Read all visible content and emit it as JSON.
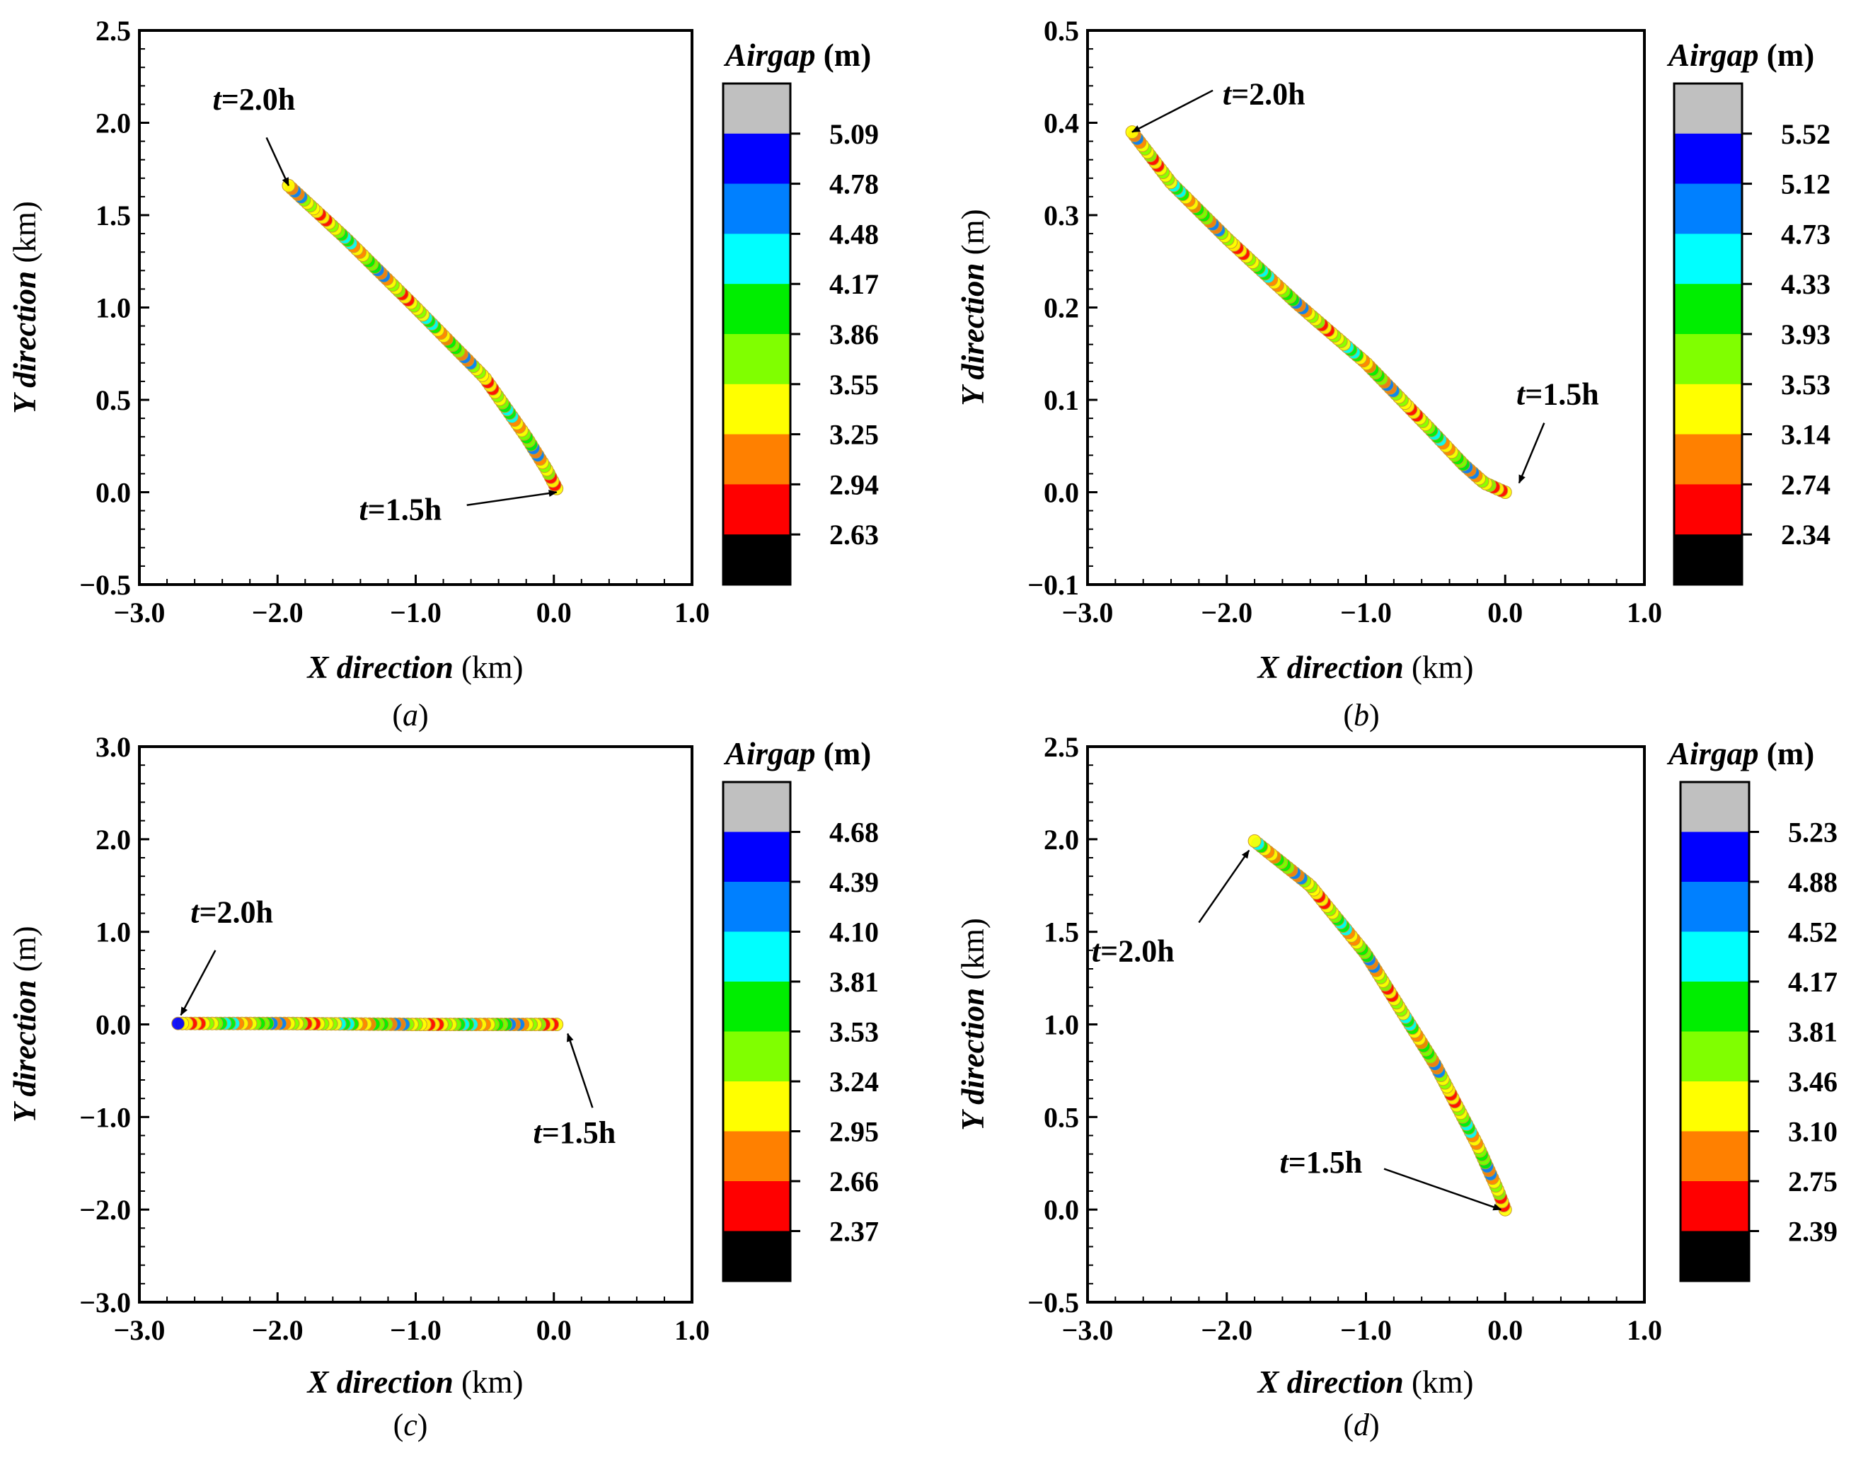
{
  "colors": {
    "levels": [
      "#000000",
      "#ff0000",
      "#ff8000",
      "#ffff00",
      "#80ff00",
      "#00ee00",
      "#00ffff",
      "#0080ff",
      "#0000ff",
      "#c0c0c0"
    ]
  },
  "chart_data": [
    {
      "type": "scatter",
      "panel": "a",
      "caption_letter": "a",
      "xlabel_var": "X direction",
      "xlabel_unit": " (km)",
      "ylabel_var": "Y direction",
      "ylabel_unit": " (km)",
      "xlim": [
        -3.0,
        1.0
      ],
      "ylim": [
        -0.5,
        2.5
      ],
      "xticks": [
        -3.0,
        -2.0,
        -1.0,
        0.0,
        1.0
      ],
      "xtick_labels": [
        "−3.0",
        "−2.0",
        "−1.0",
        "0.0",
        "1.0"
      ],
      "yticks": [
        -0.5,
        0.0,
        0.5,
        1.0,
        1.5,
        2.0,
        2.5
      ],
      "ytick_labels": [
        "−0.5",
        "0.0",
        "0.5",
        "1.0",
        "1.5",
        "2.0",
        "2.5"
      ],
      "colorbar": {
        "title_var": "Airgap",
        "title_unit": " (m)",
        "levels": [
          "5.09",
          "4.78",
          "4.48",
          "4.17",
          "3.86",
          "3.55",
          "3.25",
          "2.94",
          "2.63"
        ]
      },
      "trajectory": [
        [
          0.02,
          0.02
        ],
        [
          -0.05,
          0.12
        ],
        [
          -0.2,
          0.3
        ],
        [
          -0.5,
          0.62
        ],
        [
          -1.0,
          1.0
        ],
        [
          -1.5,
          1.37
        ],
        [
          -1.92,
          1.66
        ]
      ],
      "annotations": [
        {
          "t_var": "t",
          "t_text": "=2.0h",
          "point": [
            -1.92,
            1.66
          ],
          "text_pos": [
            -2.47,
            2.07
          ],
          "tail": [
            -2.08,
            1.92
          ]
        },
        {
          "t_var": "t",
          "t_text": "=1.5h",
          "point": [
            0.02,
            0.0
          ],
          "text_pos": [
            -1.41,
            -0.15
          ],
          "tail": [
            -0.63,
            -0.07
          ]
        }
      ]
    },
    {
      "type": "scatter",
      "panel": "b",
      "caption_letter": "b",
      "xlabel_var": "X direction",
      "xlabel_unit": " (km)",
      "ylabel_var": "Y direction",
      "ylabel_unit": " (m)",
      "xlim": [
        -3.0,
        1.0
      ],
      "ylim": [
        -0.1,
        0.5
      ],
      "xticks": [
        -3.0,
        -2.0,
        -1.0,
        0.0,
        1.0
      ],
      "xtick_labels": [
        "−3.0",
        "−2.0",
        "−1.0",
        "0.0",
        "1.0"
      ],
      "yticks": [
        -0.1,
        0.0,
        0.1,
        0.2,
        0.3,
        0.4,
        0.5
      ],
      "ytick_labels": [
        "−0.1",
        "0.0",
        "0.1",
        "0.2",
        "0.3",
        "0.4",
        "0.5"
      ],
      "colorbar": {
        "title_var": "Airgap",
        "title_unit": " (m)",
        "levels": [
          "5.52",
          "5.12",
          "4.73",
          "4.33",
          "3.93",
          "3.53",
          "3.14",
          "2.74",
          "2.34"
        ]
      },
      "trajectory": [
        [
          0.0,
          0.0
        ],
        [
          -0.15,
          0.01
        ],
        [
          -0.3,
          0.03
        ],
        [
          -0.55,
          0.07
        ],
        [
          -1.0,
          0.14
        ],
        [
          -1.5,
          0.205
        ],
        [
          -2.0,
          0.275
        ],
        [
          -2.4,
          0.335
        ],
        [
          -2.68,
          0.39
        ]
      ],
      "annotations": [
        {
          "t_var": "t",
          "t_text": "=2.0h",
          "point": [
            -2.68,
            0.39
          ],
          "text_pos": [
            -2.03,
            0.42
          ],
          "tail": [
            -2.1,
            0.435
          ]
        },
        {
          "t_var": "t",
          "t_text": "=1.5h",
          "point": [
            0.1,
            0.01
          ],
          "text_pos": [
            0.08,
            0.095
          ],
          "tail": [
            0.28,
            0.075
          ]
        }
      ]
    },
    {
      "type": "scatter",
      "panel": "c",
      "caption_letter": "c",
      "xlabel_var": "X direction",
      "xlabel_unit": " (km)",
      "ylabel_var": "Y direction",
      "ylabel_unit": " (m)",
      "xlim": [
        -3.0,
        1.0
      ],
      "ylim": [
        -3.0,
        3.0
      ],
      "xticks": [
        -3.0,
        -2.0,
        -1.0,
        0.0,
        1.0
      ],
      "xtick_labels": [
        "−3.0",
        "−2.0",
        "−1.0",
        "0.0",
        "1.0"
      ],
      "yticks": [
        -3.0,
        -2.0,
        -1.0,
        0.0,
        1.0,
        2.0,
        3.0
      ],
      "ytick_labels": [
        "−3.0",
        "−2.0",
        "−1.0",
        "0.0",
        "1.0",
        "2.0",
        "3.0"
      ],
      "colorbar": {
        "title_var": "Airgap",
        "title_unit": " (m)",
        "levels": [
          "4.68",
          "4.39",
          "4.10",
          "3.81",
          "3.53",
          "3.24",
          "2.95",
          "2.66",
          "2.37"
        ]
      },
      "trajectory": [
        [
          0.02,
          0.0
        ],
        [
          -1.0,
          0.0
        ],
        [
          -2.0,
          0.01
        ],
        [
          -2.72,
          0.01
        ]
      ],
      "annotations": [
        {
          "t_var": "t",
          "t_text": "=2.0h",
          "point": [
            -2.7,
            0.1
          ],
          "text_pos": [
            -2.63,
            1.1
          ],
          "tail": [
            -2.45,
            0.8
          ]
        },
        {
          "t_var": "t",
          "t_text": "=1.5h",
          "point": [
            0.1,
            -0.1
          ],
          "text_pos": [
            -0.15,
            -1.28
          ],
          "tail": [
            0.28,
            -0.9
          ]
        }
      ]
    },
    {
      "type": "scatter",
      "panel": "d",
      "caption_letter": "d",
      "xlabel_var": "X direction",
      "xlabel_unit": " (km)",
      "ylabel_var": "Y direction",
      "ylabel_unit": " (km)",
      "xlim": [
        -3.0,
        1.0
      ],
      "ylim": [
        -0.5,
        2.5
      ],
      "xticks": [
        -3.0,
        -2.0,
        -1.0,
        0.0,
        1.0
      ],
      "xtick_labels": [
        "−3.0",
        "−2.0",
        "−1.0",
        "0.0",
        "1.0"
      ],
      "yticks": [
        -0.5,
        0.0,
        0.5,
        1.0,
        1.5,
        2.0,
        2.5
      ],
      "ytick_labels": [
        "−0.5",
        "0.0",
        "0.5",
        "1.0",
        "1.5",
        "2.0",
        "2.5"
      ],
      "colorbar": {
        "title_var": "Airgap",
        "title_unit": " (m)",
        "levels": [
          "5.23",
          "4.88",
          "4.52",
          "4.17",
          "3.81",
          "3.46",
          "3.10",
          "2.75",
          "2.39"
        ]
      },
      "trajectory": [
        [
          0.0,
          0.0
        ],
        [
          -0.05,
          0.1
        ],
        [
          -0.2,
          0.35
        ],
        [
          -0.5,
          0.78
        ],
        [
          -1.0,
          1.38
        ],
        [
          -1.4,
          1.75
        ],
        [
          -1.8,
          1.99
        ]
      ],
      "annotations": [
        {
          "t_var": "t",
          "t_text": "=2.0h",
          "point": [
            -1.84,
            1.94
          ],
          "text_pos": [
            -2.97,
            1.34
          ],
          "tail": [
            -2.2,
            1.55
          ]
        },
        {
          "t_var": "t",
          "t_text": "=1.5h",
          "point": [
            -0.03,
            0.0
          ],
          "text_pos": [
            -1.62,
            0.2
          ],
          "tail": [
            -0.87,
            0.22
          ]
        }
      ]
    }
  ]
}
